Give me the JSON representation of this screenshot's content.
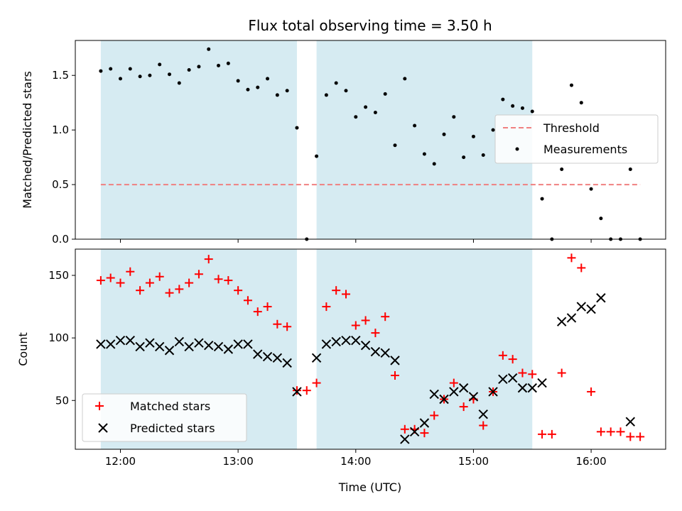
{
  "chart_data": [
    {
      "type": "scatter",
      "title": "Flux total observing time = 3.50 h",
      "xlabel": "",
      "ylabel": "Matched/Predicted stars",
      "xlim": [
        11.6167,
        16.6333
      ],
      "ylim": [
        0,
        1.82
      ],
      "xticks": [
        {
          "value": 12,
          "label": "12:00"
        },
        {
          "value": 13,
          "label": "13:00"
        },
        {
          "value": 14,
          "label": "14:00"
        },
        {
          "value": 15,
          "label": "15:00"
        },
        {
          "value": 16,
          "label": "16:00"
        }
      ],
      "yticks": [
        {
          "value": 0,
          "label": "0.0"
        },
        {
          "value": 0.5,
          "label": "0.5"
        },
        {
          "value": 1.0,
          "label": "1.0"
        },
        {
          "value": 1.5,
          "label": "1.5"
        }
      ],
      "shaded_spans": [
        {
          "start": 11.8333,
          "end": 13.5
        },
        {
          "start": 13.6667,
          "end": 15.5
        }
      ],
      "series": [
        {
          "name": "Threshold",
          "kind": "line",
          "color": "#f08080",
          "style": "dashed",
          "x": [
            11.8333,
            16.4167
          ],
          "y": [
            0.5,
            0.5
          ]
        },
        {
          "name": "Measurements",
          "kind": "dot",
          "color": "#000000",
          "x": [
            11.8333,
            11.9167,
            12.0,
            12.0833,
            12.1667,
            12.25,
            12.3333,
            12.4167,
            12.5,
            12.5833,
            12.6667,
            12.75,
            12.8333,
            12.9167,
            13.0,
            13.0833,
            13.1667,
            13.25,
            13.3333,
            13.4167,
            13.5,
            13.5833,
            13.6667,
            13.75,
            13.8333,
            13.9167,
            14.0,
            14.0833,
            14.1667,
            14.25,
            14.3333,
            14.4167,
            14.5,
            14.5833,
            14.6667,
            14.75,
            14.8333,
            14.9167,
            15.0,
            15.0833,
            15.1667,
            15.25,
            15.3333,
            15.4167,
            15.5,
            15.5833,
            15.6667,
            15.75,
            15.8333,
            15.9167,
            16.0,
            16.0833,
            16.1667,
            16.25,
            16.3333,
            16.4167
          ],
          "y": [
            1.54,
            1.56,
            1.47,
            1.56,
            1.49,
            1.5,
            1.6,
            1.51,
            1.43,
            1.55,
            1.58,
            1.74,
            1.59,
            1.61,
            1.45,
            1.37,
            1.39,
            1.47,
            1.32,
            1.36,
            1.02,
            0.0,
            0.76,
            1.32,
            1.43,
            1.36,
            1.12,
            1.21,
            1.16,
            1.33,
            0.86,
            1.47,
            1.04,
            0.78,
            0.69,
            0.96,
            1.12,
            0.75,
            0.94,
            0.77,
            1.0,
            1.28,
            1.22,
            1.2,
            1.17,
            0.37,
            0.0,
            0.64,
            1.41,
            1.25,
            0.46,
            0.19,
            0.0,
            0.0,
            0.64,
            0.0
          ]
        }
      ],
      "legend": {
        "position": "center-right",
        "entries": [
          "Threshold",
          "Measurements"
        ]
      }
    },
    {
      "type": "scatter",
      "title": "",
      "xlabel": "Time (UTC)",
      "ylabel": "Count",
      "xlim": [
        11.6167,
        16.6333
      ],
      "ylim": [
        11,
        171
      ],
      "xticks": [
        {
          "value": 12,
          "label": "12:00"
        },
        {
          "value": 13,
          "label": "13:00"
        },
        {
          "value": 14,
          "label": "14:00"
        },
        {
          "value": 15,
          "label": "15:00"
        },
        {
          "value": 16,
          "label": "16:00"
        }
      ],
      "yticks": [
        {
          "value": 50,
          "label": "50"
        },
        {
          "value": 100,
          "label": "100"
        },
        {
          "value": 150,
          "label": "150"
        }
      ],
      "shaded_spans": [
        {
          "start": 11.8333,
          "end": 13.5
        },
        {
          "start": 13.6667,
          "end": 15.5
        }
      ],
      "series": [
        {
          "name": "Matched stars",
          "kind": "plus",
          "color": "#ff0000",
          "x": [
            11.8333,
            11.9167,
            12.0,
            12.0833,
            12.1667,
            12.25,
            12.3333,
            12.4167,
            12.5,
            12.5833,
            12.6667,
            12.75,
            12.8333,
            12.9167,
            13.0,
            13.0833,
            13.1667,
            13.25,
            13.3333,
            13.4167,
            13.5,
            13.5833,
            13.6667,
            13.75,
            13.8333,
            13.9167,
            14.0,
            14.0833,
            14.1667,
            14.25,
            14.3333,
            14.4167,
            14.5,
            14.5833,
            14.6667,
            14.75,
            14.8333,
            14.9167,
            15.0,
            15.0833,
            15.1667,
            15.25,
            15.3333,
            15.4167,
            15.5,
            15.5833,
            15.6667,
            15.75,
            15.8333,
            15.9167,
            16.0,
            16.0833,
            16.1667,
            16.25,
            16.3333,
            16.4167
          ],
          "y": [
            146,
            148,
            144,
            153,
            138,
            144,
            149,
            136,
            139,
            144,
            151,
            163,
            147,
            146,
            138,
            130,
            121,
            125,
            111,
            109,
            58,
            58,
            64,
            125,
            138,
            135,
            110,
            114,
            104,
            117,
            70,
            27,
            27,
            24,
            38,
            51,
            64,
            45,
            51,
            30,
            57,
            86,
            83,
            72,
            71,
            23,
            23,
            72,
            164,
            156,
            57,
            25,
            25,
            25,
            21,
            21
          ]
        },
        {
          "name": "Predicted stars",
          "kind": "cross",
          "color": "#000000",
          "x": [
            11.8333,
            11.9167,
            12.0,
            12.0833,
            12.1667,
            12.25,
            12.3333,
            12.4167,
            12.5,
            12.5833,
            12.6667,
            12.75,
            12.8333,
            12.9167,
            13.0,
            13.0833,
            13.1667,
            13.25,
            13.3333,
            13.4167,
            13.5,
            13.6667,
            13.75,
            13.8333,
            13.9167,
            14.0,
            14.0833,
            14.1667,
            14.25,
            14.3333,
            14.4167,
            14.5,
            14.5833,
            14.6667,
            14.75,
            14.8333,
            14.9167,
            15.0,
            15.0833,
            15.1667,
            15.25,
            15.3333,
            15.4167,
            15.5,
            15.5833,
            15.75,
            15.8333,
            15.9167,
            16.0,
            16.0833,
            16.3333
          ],
          "y": [
            95,
            95,
            98,
            98,
            93,
            96,
            93,
            90,
            97,
            93,
            96,
            94,
            93,
            91,
            95,
            95,
            87,
            85,
            84,
            80,
            57,
            84,
            95,
            97,
            98,
            98,
            94,
            89,
            88,
            82,
            19,
            25,
            32,
            55,
            51,
            57,
            60,
            53,
            39,
            57,
            67,
            68,
            60,
            60,
            64,
            113,
            116,
            125,
            123,
            132,
            33
          ]
        }
      ],
      "legend": {
        "position": "lower-left",
        "entries": [
          "Matched stars",
          "Predicted stars"
        ]
      }
    }
  ]
}
